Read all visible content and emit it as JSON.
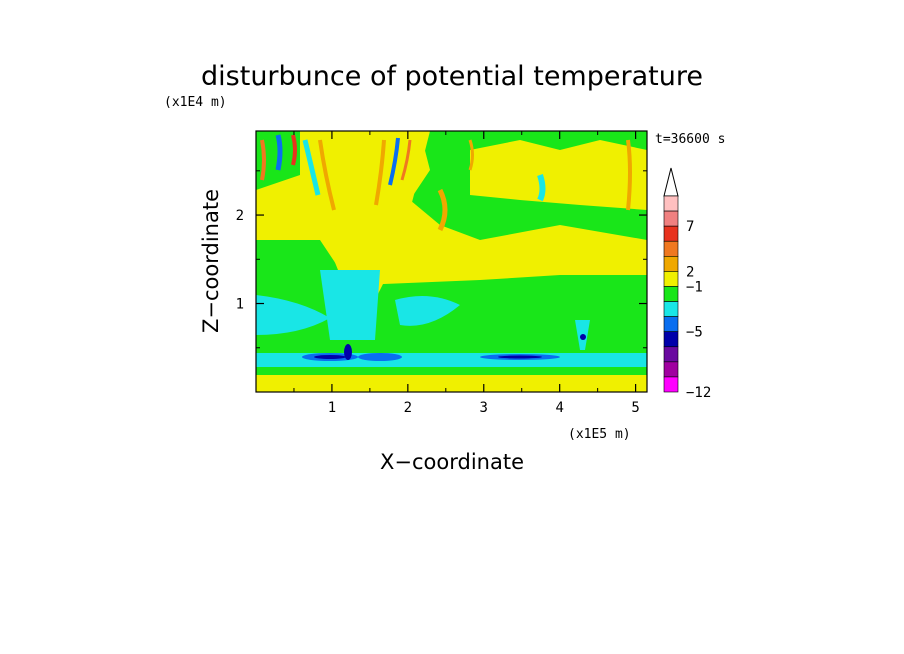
{
  "chart_data": {
    "type": "heatmap",
    "title": "disturbunce of potential temperature",
    "xlabel": "X−coordinate",
    "ylabel": "Z−coordinate",
    "x_unit": "(x1E5 m)",
    "y_unit": "(x1E4 m)",
    "time_label": "t=36600 s",
    "xlim": [
      0,
      5.15
    ],
    "ylim": [
      0,
      2.95
    ],
    "x_ticks": [
      "1",
      "2",
      "3",
      "4",
      "5"
    ],
    "y_ticks": [
      "1",
      "2"
    ],
    "grid": false,
    "colorbar": {
      "tick_labels": [
        "7",
        "2",
        "−1",
        "−5",
        "−12"
      ],
      "colors_top_to_bottom": [
        "#ffc0c0",
        "#f08080",
        "#e8321e",
        "#f07820",
        "#f0a800",
        "#f0f000",
        "#19e619",
        "#19e6e6",
        "#0a6ef0",
        "#0000aa",
        "#6a0aa0",
        "#a000a0",
        "#ff00ff"
      ]
    },
    "regions": [
      {
        "level": 2,
        "desc": "yellow broad positive region upper area"
      },
      {
        "level": 0,
        "desc": "green band near z=1.0 and z=1.7"
      },
      {
        "level": -1,
        "desc": "cyan band near z=1.0 left and z=0.4 low-level"
      },
      {
        "level": -5,
        "desc": "dark blue low-level streaks near z=0.4 at x=0.6-1.9 and x=2.9-3.6"
      }
    ]
  }
}
